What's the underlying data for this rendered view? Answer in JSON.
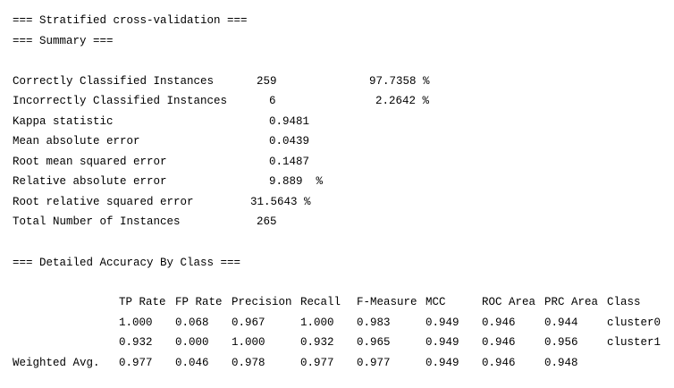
{
  "header": {
    "title": "=== Stratified cross-validation ===",
    "summary": "=== Summary ==="
  },
  "summary_rows": [
    {
      "label": "Correctly Classified Instances",
      "value": "259",
      "percent": "97.7358 %"
    },
    {
      "label": "Incorrectly Classified Instances",
      "value": "6",
      "percent": "2.2642 %"
    },
    {
      "label": "Kappa statistic",
      "value": "0.9481"
    },
    {
      "label": "Mean absolute error",
      "value": "0.0439"
    },
    {
      "label": "Root mean squared error",
      "value": "0.1487"
    },
    {
      "label": "Relative absolute error",
      "value": "9.889  %"
    },
    {
      "label": "Root relative squared error",
      "value": "31.5643 %"
    },
    {
      "label": "Total Number of Instances",
      "value": "265"
    }
  ],
  "detail": {
    "title": "=== Detailed Accuracy By Class ===",
    "columns": [
      "TP Rate",
      "FP Rate",
      "Precision",
      "Recall",
      "F-Measure",
      "MCC",
      "ROC Area",
      "PRC Area",
      "Class"
    ],
    "rows": [
      {
        "label": "",
        "cells": [
          "1.000",
          "0.068",
          "0.967",
          "1.000",
          "0.983",
          "0.949",
          "0.946",
          "0.944",
          "cluster0"
        ]
      },
      {
        "label": "",
        "cells": [
          "0.932",
          "0.000",
          "1.000",
          "0.932",
          "0.965",
          "0.949",
          "0.946",
          "0.956",
          "cluster1"
        ]
      },
      {
        "label": "Weighted Avg.",
        "cells": [
          "0.977",
          "0.046",
          "0.978",
          "0.977",
          "0.977",
          "0.949",
          "0.946",
          "0.948",
          ""
        ]
      }
    ]
  }
}
